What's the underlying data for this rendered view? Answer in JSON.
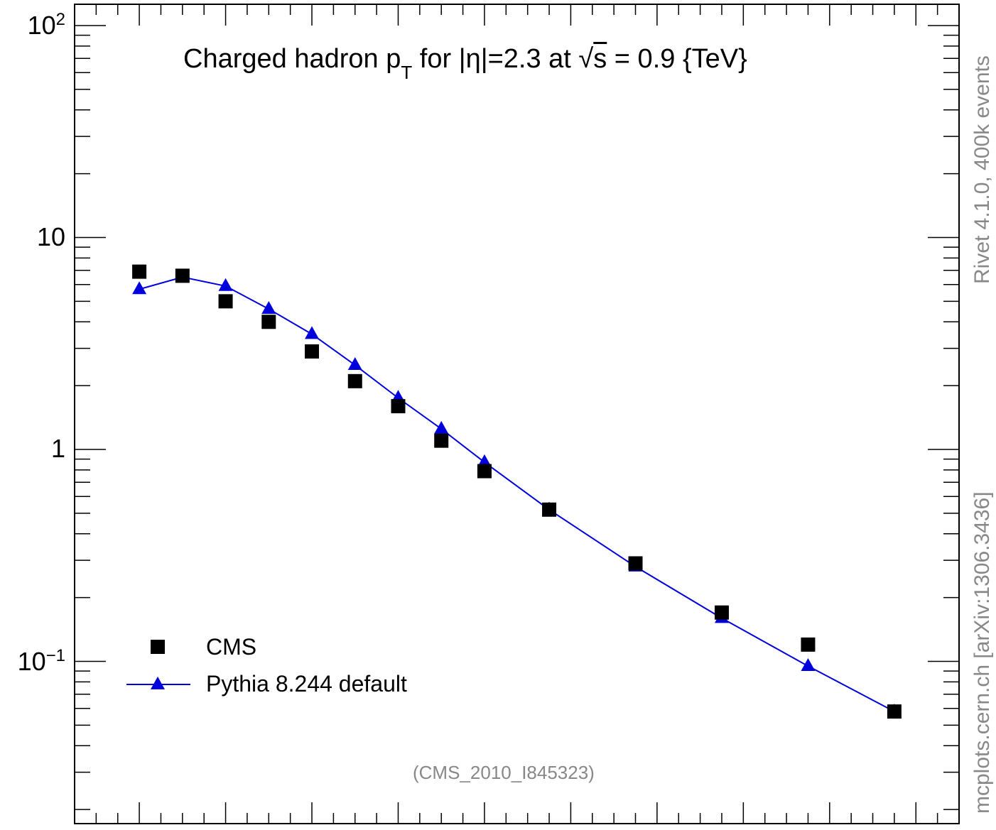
{
  "chart_data": {
    "type": "scatter",
    "title": {
      "part1": "Charged hadron p",
      "part1_sub": "T",
      "part2": " for |η|=2.3 at √",
      "part2_sqrt": "s",
      "part3": " = 0.9 {TeV}"
    },
    "y_scale": "log",
    "ylim": [
      0.02,
      120
    ],
    "y_ticks": [
      {
        "value": 0.1,
        "base": "10",
        "exp": "−1"
      },
      {
        "value": 1,
        "base": "1",
        "exp": ""
      },
      {
        "value": 10,
        "base": "10",
        "exp": ""
      },
      {
        "value": 100,
        "base": "10",
        "exp": "2"
      }
    ],
    "series": [
      {
        "name": "CMS",
        "marker": "square",
        "color": "#000000",
        "x": [
          0.1,
          0.15,
          0.2,
          0.25,
          0.3,
          0.35,
          0.4,
          0.45,
          0.5,
          0.575,
          0.675,
          0.775,
          0.875,
          0.975
        ],
        "values": [
          6.9,
          6.6,
          5.0,
          4.0,
          2.9,
          2.1,
          1.6,
          1.1,
          0.79,
          0.52,
          0.29,
          0.17,
          0.12,
          0.058
        ]
      },
      {
        "name": "Pythia 8.244 default",
        "marker": "triangle",
        "line": true,
        "color": "#0000dd",
        "x": [
          0.1,
          0.15,
          0.2,
          0.25,
          0.3,
          0.35,
          0.4,
          0.45,
          0.5,
          0.575,
          0.675,
          0.775,
          0.875,
          0.975
        ],
        "values": [
          5.7,
          6.5,
          5.9,
          4.6,
          3.5,
          2.5,
          1.75,
          1.25,
          0.87,
          0.52,
          0.28,
          0.16,
          0.095,
          0.058
        ]
      }
    ],
    "legend": {
      "placement": "bottom-left",
      "entries": [
        "CMS",
        "Pythia 8.244 default"
      ]
    },
    "annotation": "(CMS_2010_I845323)",
    "side_label_upper": "Rivet 4.1.0,  400k events",
    "side_label_lower": "mcplots.cern.ch [arXiv:1306.3436]"
  },
  "colors": {
    "frame": "#000000",
    "data": "#000000",
    "mc": "#0000dd",
    "side_text": "#888888"
  }
}
